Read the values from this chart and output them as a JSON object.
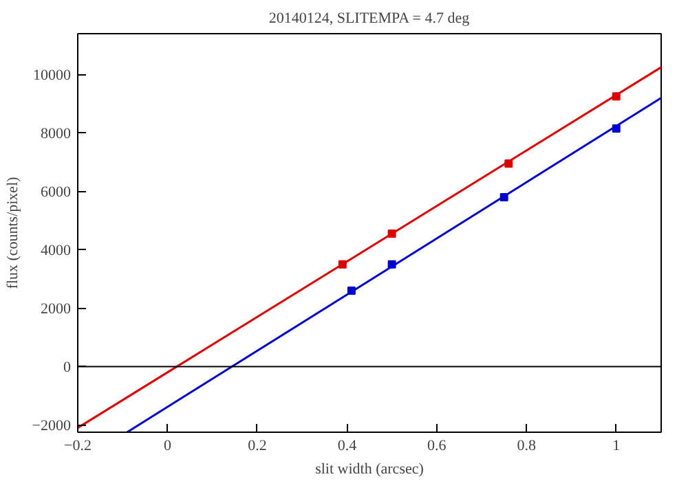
{
  "chart_data": {
    "type": "scatter",
    "title": "20140124, SLITEMPA = 4.7 deg",
    "xlabel": "slit width (arcsec)",
    "ylabel": "flux (counts/pixel)",
    "xlim": [
      -0.2,
      1.1
    ],
    "ylim": [
      -2250,
      11400
    ],
    "xticks": [
      -0.2,
      0,
      0.2,
      0.4,
      0.6,
      0.8,
      1
    ],
    "yticks": [
      -2000,
      0,
      2000,
      4000,
      6000,
      8000,
      10000
    ],
    "grid": false,
    "marker": "square",
    "ref_lines": [
      {
        "axis": "y",
        "value": 0,
        "color": "#000000"
      }
    ],
    "series": [
      {
        "color": "#dd0000",
        "x": [
          0.39,
          0.5,
          0.76,
          1.0
        ],
        "values": [
          3500,
          4550,
          6950,
          9250
        ]
      },
      {
        "color": "#0000cc",
        "x": [
          0.41,
          0.5,
          0.75,
          1.0
        ],
        "values": [
          2600,
          3500,
          5800,
          8150
        ]
      },
      {
        "type": "line",
        "marker": "none",
        "color": "#dd0000",
        "x": [
          -0.2,
          1.1
        ],
        "values": [
          -2100,
          10250
        ]
      },
      {
        "type": "line",
        "marker": "none",
        "color": "#0000cc",
        "x": [
          -0.09,
          1.1
        ],
        "values": [
          -2250,
          9200
        ]
      }
    ]
  }
}
